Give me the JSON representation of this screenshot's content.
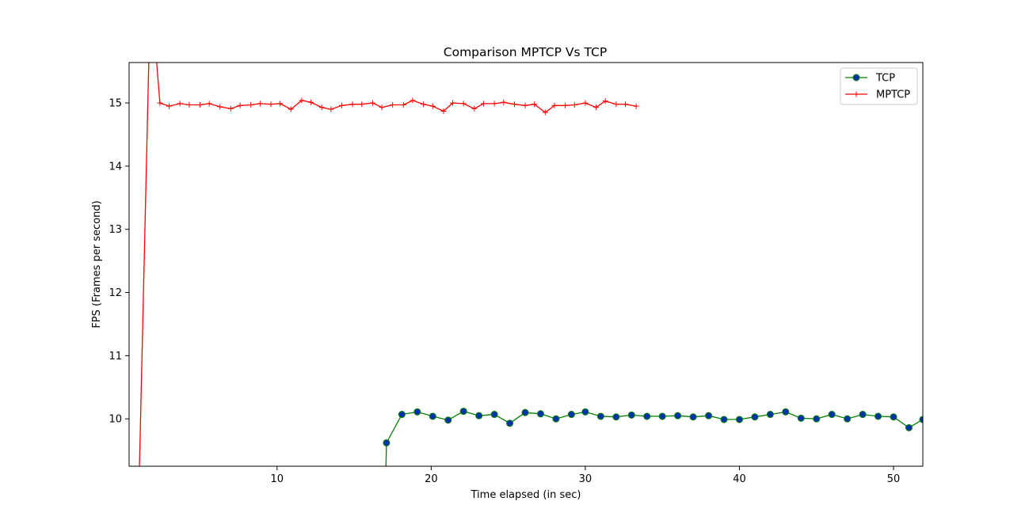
{
  "chart_data": {
    "type": "line",
    "title": "Comparison MPTCP Vs TCP",
    "xlabel": "Time elapsed (in sec)",
    "ylabel": "FPS (Frames per second)",
    "xlim": [
      0.4,
      51.9
    ],
    "ylim": [
      9.25,
      15.64
    ],
    "xticks": [
      10,
      20,
      30,
      40,
      50
    ],
    "yticks": [
      10,
      11,
      12,
      13,
      14,
      15
    ],
    "grid": false,
    "legend_position": "top-right",
    "series": [
      {
        "name": "TCP",
        "color": "#008000",
        "marker": "circle",
        "marker_fill": "#0033aa",
        "points": [
          [
            17.0,
            8.5
          ],
          [
            17.1,
            9.62
          ],
          [
            18.1,
            10.07
          ],
          [
            19.1,
            10.11
          ],
          [
            20.1,
            10.04
          ],
          [
            21.1,
            9.98
          ],
          [
            22.1,
            10.12
          ],
          [
            23.1,
            10.05
          ],
          [
            24.1,
            10.07
          ],
          [
            25.1,
            9.93
          ],
          [
            26.1,
            10.1
          ],
          [
            27.1,
            10.08
          ],
          [
            28.1,
            10.0
          ],
          [
            29.1,
            10.07
          ],
          [
            30.0,
            10.11
          ],
          [
            31.0,
            10.04
          ],
          [
            32.0,
            10.03
          ],
          [
            33.0,
            10.06
          ],
          [
            34.0,
            10.04
          ],
          [
            35.0,
            10.04
          ],
          [
            36.0,
            10.05
          ],
          [
            37.0,
            10.03
          ],
          [
            38.0,
            10.05
          ],
          [
            39.0,
            9.99
          ],
          [
            40.0,
            9.99
          ],
          [
            41.0,
            10.03
          ],
          [
            42.0,
            10.07
          ],
          [
            43.0,
            10.11
          ],
          [
            44.0,
            10.01
          ],
          [
            45.0,
            10.0
          ],
          [
            46.0,
            10.07
          ],
          [
            47.0,
            10.0
          ],
          [
            48.0,
            10.07
          ],
          [
            49.0,
            10.04
          ],
          [
            50.0,
            10.03
          ],
          [
            51.0,
            9.86
          ],
          [
            51.9,
            9.99
          ]
        ]
      },
      {
        "name": "MPTCP",
        "color": "#ff0000",
        "marker": "plus",
        "points": [
          [
            1.0,
            8.5
          ],
          [
            1.7,
            15.9
          ],
          [
            2.1,
            15.9
          ],
          [
            2.4,
            15.0
          ],
          [
            3.0,
            14.95
          ],
          [
            3.7,
            14.99
          ],
          [
            4.3,
            14.97
          ],
          [
            5.0,
            14.97
          ],
          [
            5.6,
            14.99
          ],
          [
            6.3,
            14.94
          ],
          [
            7.0,
            14.91
          ],
          [
            7.6,
            14.96
          ],
          [
            8.3,
            14.97
          ],
          [
            8.9,
            14.99
          ],
          [
            9.6,
            14.98
          ],
          [
            10.2,
            14.99
          ],
          [
            10.9,
            14.9
          ],
          [
            11.6,
            15.04
          ],
          [
            12.2,
            15.01
          ],
          [
            12.9,
            14.93
          ],
          [
            13.5,
            14.9
          ],
          [
            14.2,
            14.96
          ],
          [
            14.9,
            14.98
          ],
          [
            15.5,
            14.98
          ],
          [
            16.2,
            15.0
          ],
          [
            16.8,
            14.93
          ],
          [
            17.5,
            14.97
          ],
          [
            18.2,
            14.97
          ],
          [
            18.8,
            15.04
          ],
          [
            19.5,
            14.98
          ],
          [
            20.1,
            14.95
          ],
          [
            20.8,
            14.87
          ],
          [
            21.4,
            15.0
          ],
          [
            22.1,
            14.99
          ],
          [
            22.8,
            14.91
          ],
          [
            23.4,
            14.99
          ],
          [
            24.1,
            14.99
          ],
          [
            24.7,
            15.01
          ],
          [
            25.4,
            14.98
          ],
          [
            26.1,
            14.96
          ],
          [
            26.7,
            14.98
          ],
          [
            27.4,
            14.85
          ],
          [
            28.0,
            14.96
          ],
          [
            28.7,
            14.96
          ],
          [
            29.3,
            14.97
          ],
          [
            30.0,
            15.0
          ],
          [
            30.7,
            14.93
          ],
          [
            31.3,
            15.03
          ],
          [
            32.0,
            14.98
          ],
          [
            32.6,
            14.98
          ],
          [
            33.3,
            14.95
          ]
        ]
      }
    ]
  }
}
